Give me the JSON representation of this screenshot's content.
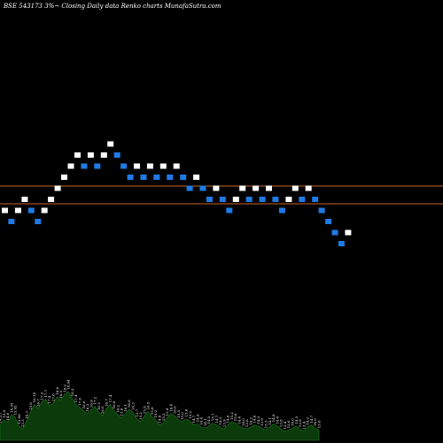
{
  "header": {
    "title": "BSE 543173 3%~  Closing Daily data  Renko  charts MunafaSutra.com"
  },
  "colors": {
    "background": "#000000",
    "up_brick": "#ffffff",
    "down_brick": "#1e7be6",
    "reference_line": "#c8642a",
    "volume_fill": "#0b3a0b",
    "volume_edge": "#1f7a1f"
  },
  "chart_data": {
    "type": "renko",
    "brick_size_label": "3%",
    "reference_lines": [
      6.55,
      6.15
    ],
    "bricks": [
      {
        "dir": "up",
        "value": 6.0
      },
      {
        "dir": "down",
        "value": 5.75
      },
      {
        "dir": "up",
        "value": 6.0
      },
      {
        "dir": "up",
        "value": 6.25
      },
      {
        "dir": "down",
        "value": 6.0
      },
      {
        "dir": "down",
        "value": 5.75
      },
      {
        "dir": "up",
        "value": 6.0
      },
      {
        "dir": "up",
        "value": 6.25
      },
      {
        "dir": "up",
        "value": 6.5
      },
      {
        "dir": "up",
        "value": 6.75
      },
      {
        "dir": "up",
        "value": 7.0
      },
      {
        "dir": "up",
        "value": 7.25
      },
      {
        "dir": "down",
        "value": 7.0
      },
      {
        "dir": "up",
        "value": 7.25
      },
      {
        "dir": "down",
        "value": 7.0
      },
      {
        "dir": "up",
        "value": 7.25
      },
      {
        "dir": "up",
        "value": 7.5
      },
      {
        "dir": "down",
        "value": 7.25
      },
      {
        "dir": "down",
        "value": 7.0
      },
      {
        "dir": "down",
        "value": 6.75
      },
      {
        "dir": "up",
        "value": 7.0
      },
      {
        "dir": "down",
        "value": 6.75
      },
      {
        "dir": "up",
        "value": 7.0
      },
      {
        "dir": "down",
        "value": 6.75
      },
      {
        "dir": "up",
        "value": 7.0
      },
      {
        "dir": "down",
        "value": 6.75
      },
      {
        "dir": "up",
        "value": 7.0
      },
      {
        "dir": "down",
        "value": 6.75
      },
      {
        "dir": "down",
        "value": 6.5
      },
      {
        "dir": "up",
        "value": 6.75
      },
      {
        "dir": "down",
        "value": 6.5
      },
      {
        "dir": "down",
        "value": 6.25
      },
      {
        "dir": "up",
        "value": 6.5
      },
      {
        "dir": "down",
        "value": 6.25
      },
      {
        "dir": "down",
        "value": 6.0
      },
      {
        "dir": "up",
        "value": 6.25
      },
      {
        "dir": "up",
        "value": 6.5
      },
      {
        "dir": "down",
        "value": 6.25
      },
      {
        "dir": "up",
        "value": 6.5
      },
      {
        "dir": "down",
        "value": 6.25
      },
      {
        "dir": "up",
        "value": 6.5
      },
      {
        "dir": "down",
        "value": 6.25
      },
      {
        "dir": "down",
        "value": 6.0
      },
      {
        "dir": "up",
        "value": 6.25
      },
      {
        "dir": "up",
        "value": 6.5
      },
      {
        "dir": "down",
        "value": 6.25
      },
      {
        "dir": "up",
        "value": 6.5
      },
      {
        "dir": "down",
        "value": 6.25
      },
      {
        "dir": "down",
        "value": 6.0
      },
      {
        "dir": "down",
        "value": 5.75
      },
      {
        "dir": "down",
        "value": 5.5
      },
      {
        "dir": "down",
        "value": 5.25
      },
      {
        "dir": "up",
        "value": 5.5
      }
    ],
    "volume": {
      "values": [
        0.3,
        0.4,
        0.35,
        0.5,
        0.45,
        0.28,
        0.22,
        0.38,
        0.55,
        0.7,
        0.62,
        0.75,
        0.8,
        0.68,
        0.72,
        0.85,
        0.78,
        0.9,
        0.95,
        0.82,
        0.7,
        0.64,
        0.58,
        0.52,
        0.6,
        0.66,
        0.55,
        0.48,
        0.62,
        0.7,
        0.58,
        0.5,
        0.44,
        0.52,
        0.6,
        0.55,
        0.42,
        0.36,
        0.48,
        0.56,
        0.46,
        0.4,
        0.3,
        0.34,
        0.44,
        0.52,
        0.48,
        0.4,
        0.36,
        0.42,
        0.38,
        0.3,
        0.32,
        0.26,
        0.24,
        0.28,
        0.34,
        0.3,
        0.26,
        0.22,
        0.3,
        0.36,
        0.34,
        0.28,
        0.24,
        0.22,
        0.26,
        0.3,
        0.28,
        0.24,
        0.2,
        0.26,
        0.32,
        0.28,
        0.22,
        0.18,
        0.2,
        0.24,
        0.28,
        0.22,
        0.18,
        0.26,
        0.3,
        0.24,
        0.2
      ],
      "labels": [
        "14.25",
        "13.9",
        "14.6",
        "14.55",
        "13.92",
        "13.49",
        "13.5",
        "14.3",
        "15.8",
        "16.14",
        "16.7",
        "17.2",
        "17.7",
        "17.4",
        "17.6",
        "18.0",
        "18.5",
        "18.2",
        "18.94",
        "18.2",
        "17.4",
        "17.0",
        "16.6",
        "16.3",
        "16.9",
        "17.2",
        "16.5",
        "16.0",
        "16.7",
        "17.4",
        "16.8",
        "16.2",
        "15.6",
        "16.1",
        "16.8",
        "16.3",
        "15.7",
        "15.2",
        "15.9",
        "16.5",
        "15.8",
        "15.2",
        "14.8",
        "15.2",
        "15.9",
        "16.4",
        "16.0",
        "15.5",
        "15.0",
        "15.6",
        "15.2",
        "14.7",
        "14.9",
        "14.4",
        "14.1",
        "14.5",
        "15.1",
        "14.7",
        "14.3",
        "13.9",
        "14.6",
        "15.2",
        "15.0",
        "14.4",
        "14.0",
        "13.8",
        "14.2",
        "14.6",
        "14.3",
        "13.9",
        "13.5",
        "14.1",
        "14.8",
        "14.4",
        "13.8",
        "13.4",
        "13.6",
        "14.0",
        "14.5",
        "13.9",
        "13.4",
        "14.2",
        "14.7",
        "14.0",
        "13.6"
      ]
    }
  }
}
